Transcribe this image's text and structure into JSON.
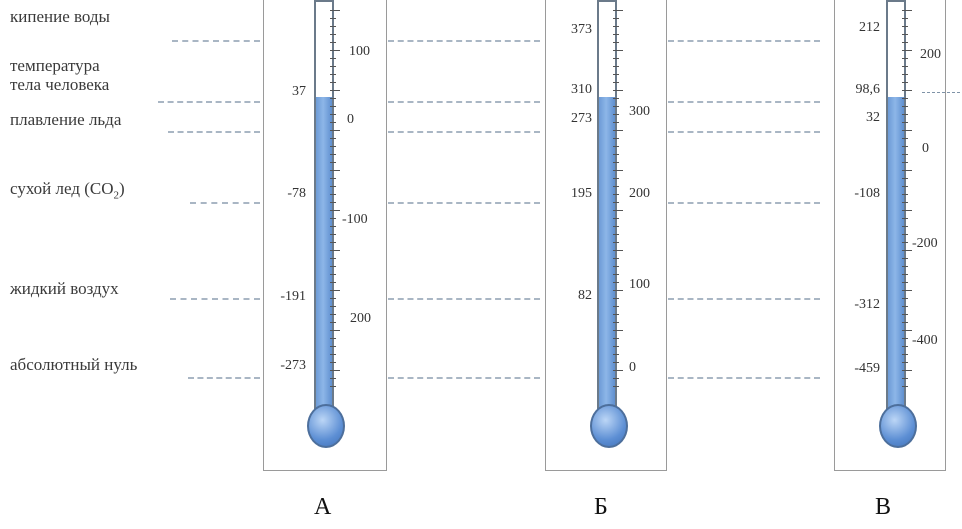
{
  "labels": {
    "boiling": "кипение воды",
    "human_temp_1": "температура",
    "human_temp_2": "тела человека",
    "melting": "плавление льда",
    "dry_ice": "сухой лед (CO",
    "dry_ice_sub": "2",
    "dry_ice_end": ")",
    "liquid_air": "жидкий воздух",
    "absolute_zero": "абсолютный нуль"
  },
  "thermometer_a": {
    "caption": "А",
    "points": [
      "37",
      "-78",
      "-191",
      "-273"
    ],
    "scale": [
      "100",
      "0",
      "-100",
      "200"
    ]
  },
  "thermometer_b": {
    "caption": "Б",
    "points": [
      "373",
      "310",
      "273",
      "195",
      "82"
    ],
    "scale": [
      "300",
      "200",
      "100",
      "0"
    ]
  },
  "thermometer_c": {
    "caption": "В",
    "points": [
      "212",
      "98,6",
      "32",
      "-108",
      "-312",
      "-459"
    ],
    "scale": [
      "200",
      "0",
      "-200",
      "-400"
    ]
  },
  "colors": {
    "mercury": "#7aa8e2",
    "dash": "#a9b6c4"
  }
}
